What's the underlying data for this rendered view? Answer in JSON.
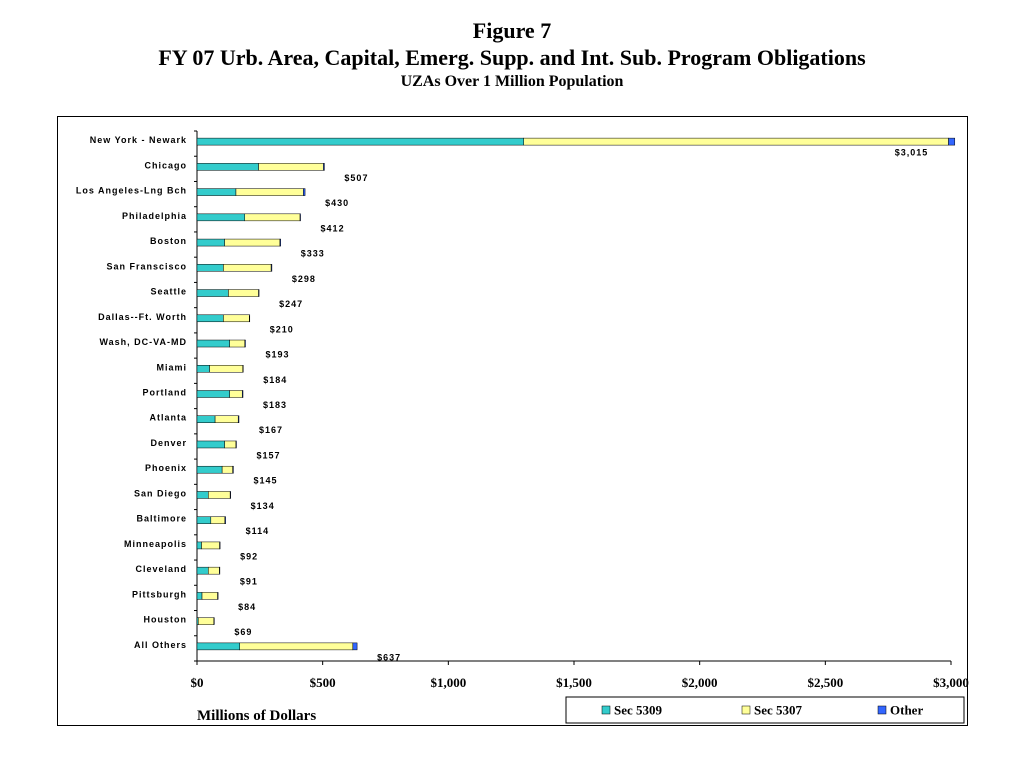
{
  "chart_data": {
    "type": "bar",
    "orientation": "horizontal",
    "stacked": true,
    "title": "Figure 7",
    "subtitle": "FY 07 Urb. Area, Capital, Emerg. Supp. and Int. Sub. Program Obligations",
    "subtitle2": "UZAs Over 1 Million Population",
    "xlabel": "Millions of Dollars",
    "ylabel": "",
    "xlim": [
      0,
      3000
    ],
    "xticks": [
      0,
      500,
      1000,
      1500,
      2000,
      2500,
      3000
    ],
    "xtick_labels": [
      "$0",
      "$500",
      "$1,000",
      "$1,500",
      "$2,000",
      "$2,500",
      "$3,000"
    ],
    "grid": false,
    "legend_placement": "bottom-right",
    "categories": [
      "New York - Newark",
      "Chicago",
      "Los Angeles-Lng Bch",
      "Philadelphia",
      "Boston",
      "San Franscisco",
      "Seattle",
      "Dallas--Ft. Worth",
      "Wash, DC-VA-MD",
      "Miami",
      "Portland",
      "Atlanta",
      "Denver",
      "Phoenix",
      "San Diego",
      "Baltimore",
      "Minneapolis",
      "Cleveland",
      "Pittsburgh",
      "Houston",
      "All Others"
    ],
    "series": [
      {
        "name": "Sec 5309",
        "color": "#33CCCC",
        "values": [
          1300,
          245,
          155,
          190,
          110,
          105,
          125,
          105,
          130,
          50,
          130,
          72,
          110,
          100,
          45,
          55,
          18,
          45,
          20,
          5,
          170
        ]
      },
      {
        "name": "Sec 5307",
        "color": "#FFFF99",
        "values": [
          1690,
          258,
          268,
          220,
          220,
          190,
          120,
          103,
          60,
          132,
          50,
          92,
          45,
          42,
          87,
          56,
          72,
          44,
          62,
          62,
          450
        ]
      },
      {
        "name": "Other",
        "color": "#3366FF",
        "values": [
          25,
          4,
          7,
          2,
          3,
          3,
          2,
          2,
          3,
          2,
          3,
          3,
          2,
          3,
          2,
          3,
          2,
          2,
          2,
          2,
          17
        ]
      }
    ],
    "totals": [
      3015,
      507,
      430,
      412,
      333,
      298,
      247,
      210,
      193,
      184,
      183,
      167,
      157,
      145,
      134,
      114,
      92,
      91,
      84,
      69,
      637
    ],
    "total_labels": [
      "$3,015",
      "$507",
      "$430",
      "$412",
      "$333",
      "$298",
      "$247",
      "$210",
      "$193",
      "$184",
      "$183",
      "$167",
      "$157",
      "$145",
      "$134",
      "$114",
      "$92",
      "$91",
      "$84",
      "$69",
      "$637"
    ]
  }
}
